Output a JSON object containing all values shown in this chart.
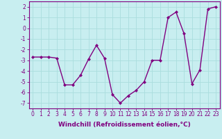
{
  "x": [
    0,
    1,
    2,
    3,
    4,
    5,
    6,
    7,
    8,
    9,
    10,
    11,
    12,
    13,
    14,
    15,
    16,
    17,
    18,
    19,
    20,
    21,
    22,
    23
  ],
  "y": [
    -2.7,
    -2.7,
    -2.7,
    -2.8,
    -5.3,
    -5.3,
    -4.4,
    -2.9,
    -1.6,
    -2.8,
    -6.2,
    -7.0,
    -6.3,
    -5.8,
    -5.0,
    -3.0,
    -3.0,
    1.0,
    1.5,
    -0.5,
    -5.2,
    -3.9,
    1.8,
    2.0
  ],
  "line_color": "#800080",
  "marker": "D",
  "marker_size": 2.0,
  "bg_color": "#c8eef0",
  "grid_color": "#aadddd",
  "xlabel": "Windchill (Refroidissement éolien,°C)",
  "xlim": [
    -0.5,
    23.5
  ],
  "ylim": [
    -7.5,
    2.5
  ],
  "yticks": [
    -7,
    -6,
    -5,
    -4,
    -3,
    -2,
    -1,
    0,
    1,
    2
  ],
  "xticks": [
    0,
    1,
    2,
    3,
    4,
    5,
    6,
    7,
    8,
    9,
    10,
    11,
    12,
    13,
    14,
    15,
    16,
    17,
    18,
    19,
    20,
    21,
    22,
    23
  ],
  "tick_fontsize": 5.5,
  "xlabel_fontsize": 6.5,
  "line_width": 1.0
}
